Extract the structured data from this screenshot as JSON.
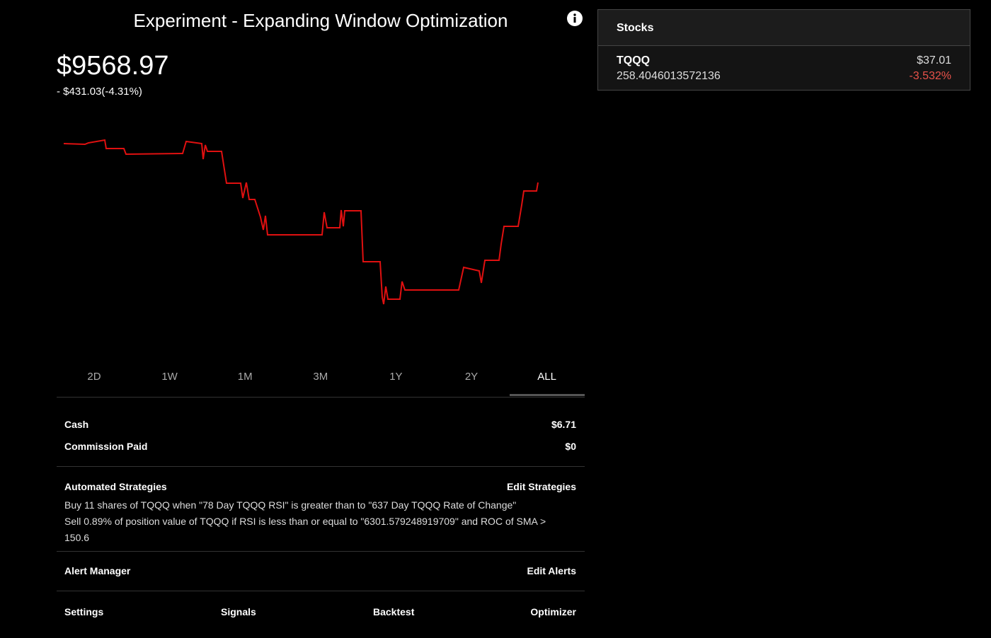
{
  "header": {
    "title": "Experiment - Expanding Window Optimization"
  },
  "portfolio": {
    "value": "$9568.97",
    "change": "- $431.03(-4.31%)"
  },
  "ranges": [
    "2D",
    "1W",
    "1M",
    "3M",
    "1Y",
    "2Y",
    "ALL"
  ],
  "active_range": 6,
  "summary": [
    {
      "label": "Cash",
      "value": "$6.71"
    },
    {
      "label": "Commission Paid",
      "value": "$0"
    }
  ],
  "strategies": {
    "title": "Automated Strategies",
    "action": "Edit Strategies",
    "items": [
      "Buy 11 shares of TQQQ when \"78 Day TQQQ RSI\" is greater than to \"637 Day TQQQ Rate of Change\"",
      "Sell 0.89% of position value of TQQQ if RSI is less than or equal to \"6301.579248919709\" and ROC of SMA > 150.6"
    ]
  },
  "alerts": {
    "title": "Alert Manager",
    "action": "Edit Alerts"
  },
  "footer": [
    "Settings",
    "Signals",
    "Backtest",
    "Optimizer"
  ],
  "stocks": {
    "title": "Stocks",
    "items": [
      {
        "symbol": "TQQQ",
        "shares": "258.4046013572136",
        "price": "$37.01",
        "change": "-3.532%"
      }
    ]
  }
}
